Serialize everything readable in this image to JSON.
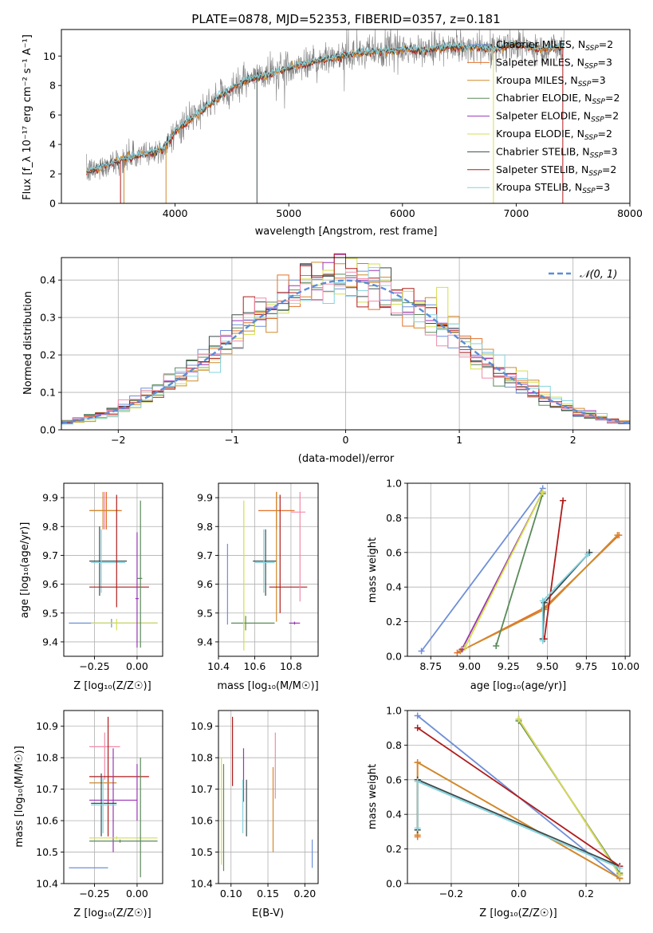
{
  "figure_title": "PLATE=0878, MJD=52353, FIBERID=0357, z=0.181",
  "colors": {
    "Chabrier MILES": "#6f8fd8",
    "Salpeter MILES": "#e3712a",
    "Kroupa MILES": "#d08a2b",
    "Chabrier ELODIE": "#5a8a5a",
    "Salpeter ELODIE": "#9a35b5",
    "Kroupa ELODIE": "#d4df4c",
    "Chabrier STELIB": "#3d4a4a",
    "Salpeter STELIB": "#b01c1c",
    "Kroupa STELIB": "#83d3df",
    "Salpeter MILES (err)": "#f08aa8",
    "normal": "#5b8dd6",
    "data": "#808080"
  },
  "chart_data": [
    {
      "id": "spectrum",
      "type": "line",
      "title": "PLATE=0878, MJD=52353, FIBERID=0357, z=0.181",
      "xlabel": "wavelength [Angstrom, rest frame]",
      "ylabel": "Flux [f_λ 10⁻¹⁷ erg cm⁻² s⁻¹ A⁻¹]",
      "xlim": [
        3000,
        8000
      ],
      "ylim": [
        0,
        11.8
      ],
      "xticks": [
        4000,
        5000,
        6000,
        7000,
        8000
      ],
      "yticks": [
        0,
        2,
        4,
        6,
        8,
        10
      ],
      "legend_position": "upper-right",
      "legend": [
        {
          "text": "Chabrier MILES, N",
          "sub": "SSP",
          "tail": "=2"
        },
        {
          "text": "Salpeter MILES, N",
          "sub": "SSP",
          "tail": "=3"
        },
        {
          "text": "Kroupa MILES, N",
          "sub": "SSP",
          "tail": "=3"
        },
        {
          "text": "Chabrier ELODIE, N",
          "sub": "SSP",
          "tail": "=2"
        },
        {
          "text": "Salpeter ELODIE, N",
          "sub": "SSP",
          "tail": "=2"
        },
        {
          "text": "Kroupa ELODIE, N",
          "sub": "SSP",
          "tail": "=2"
        },
        {
          "text": "Chabrier STELIB, N",
          "sub": "SSP",
          "tail": "=3"
        },
        {
          "text": "Salpeter STELIB, N",
          "sub": "SSP",
          "tail": "=2"
        },
        {
          "text": "Kroupa STELIB, N",
          "sub": "SSP",
          "tail": "=3"
        }
      ],
      "continuum": {
        "x": [
          3220,
          3500,
          3600,
          3700,
          3800,
          3900,
          4000,
          4100,
          4200,
          4300,
          4400,
          4500,
          4600,
          4800,
          5000,
          5200,
          5400,
          5600,
          5800,
          6000,
          6200,
          6400,
          6600,
          6800,
          7000,
          7200,
          7400
        ],
        "y": [
          2.1,
          2.9,
          3.1,
          3.3,
          3.5,
          3.7,
          4.9,
          5.5,
          6.1,
          6.7,
          7.3,
          7.8,
          8.3,
          8.7,
          9.2,
          9.6,
          9.9,
          10.2,
          10.3,
          10.4,
          10.4,
          10.6,
          10.6,
          10.5,
          10.8,
          10.5,
          10.6
        ]
      },
      "data_range": [
        3220,
        7420
      ]
    },
    {
      "id": "residuals",
      "type": "histogram",
      "xlabel": "(data-model)/error",
      "ylabel": "Normed distribution",
      "xlim": [
        -2.5,
        2.5
      ],
      "ylim": [
        0,
        0.46
      ],
      "xticks": [
        -2,
        -1,
        0,
        1,
        2
      ],
      "yticks": [
        0.0,
        0.1,
        0.2,
        0.3,
        0.4
      ],
      "legend_position": "upper-right",
      "legend": [
        {
          "text": "𝒩(0, 1)"
        }
      ],
      "bin_width": 0.1,
      "grid": true
    },
    {
      "id": "age_vs_Z",
      "type": "errorbar",
      "xlabel": "Z [log₁₀(Z/Z☉)]",
      "ylabel": "age  [log₁₀(age/yr)]",
      "xlim": [
        -0.43,
        0.15
      ],
      "ylim": [
        9.35,
        9.95
      ],
      "xticks": [
        -0.25,
        0.0
      ],
      "yticks": [
        9.4,
        9.5,
        9.6,
        9.7,
        9.8,
        9.9
      ],
      "points": [
        {
          "c": "Salpeter MILES",
          "x": -0.18,
          "y": 9.855,
          "xe": [
            -0.27,
            -0.09
          ],
          "ye": [
            9.79,
            9.92
          ]
        },
        {
          "c": "Salpeter MILES (err)",
          "x": -0.19,
          "y": 9.855,
          "xe": [
            -0.28,
            -0.1
          ],
          "ye": [
            9.79,
            9.92
          ]
        },
        {
          "c": "Kroupa MILES",
          "x": -0.2,
          "y": 9.855,
          "xe": [
            -0.28,
            -0.1
          ],
          "ye": [
            9.79,
            9.92
          ]
        },
        {
          "c": "Chabrier STELIB",
          "x": -0.22,
          "y": 9.68,
          "xe": [
            -0.28,
            -0.06
          ],
          "ye": [
            9.56,
            9.8
          ]
        },
        {
          "c": "Kroupa STELIB",
          "x": -0.21,
          "y": 9.675,
          "xe": [
            -0.27,
            -0.07
          ],
          "ye": [
            9.57,
            9.79
          ]
        },
        {
          "c": "Salpeter STELIB",
          "x": -0.12,
          "y": 9.59,
          "xe": [
            -0.28,
            0.07
          ],
          "ye": [
            9.52,
            9.91
          ]
        },
        {
          "c": "Chabrier MILES",
          "x": -0.15,
          "y": 9.465,
          "xe": [
            -0.4,
            0.12
          ],
          "ye": [
            9.45,
            9.48
          ]
        },
        {
          "c": "Kroupa ELODIE",
          "x": -0.12,
          "y": 9.465,
          "xe": [
            -0.27,
            0.12
          ],
          "ye": [
            9.44,
            9.48
          ]
        },
        {
          "c": "Chabrier ELODIE",
          "x": 0.02,
          "y": 9.62,
          "xe": [
            0.0,
            0.03
          ],
          "ye": [
            9.38,
            9.89
          ]
        },
        {
          "c": "Salpeter ELODIE",
          "x": 0.0,
          "y": 9.55,
          "xe": [
            -0.01,
            0.01
          ],
          "ye": [
            9.38,
            9.78
          ]
        }
      ]
    },
    {
      "id": "age_vs_mass",
      "type": "errorbar",
      "xlabel": "mass [log₁₀(M/M☉)]",
      "ylabel": "",
      "xlim": [
        10.4,
        10.95
      ],
      "ylim": [
        9.35,
        9.95
      ],
      "xticks": [
        10.4,
        10.6,
        10.8
      ],
      "yticks": [
        9.4,
        9.5,
        9.6,
        9.7,
        9.8,
        9.9
      ],
      "points": [
        {
          "c": "Chabrier MILES",
          "x": 10.45,
          "y": 9.6,
          "xe": [
            10.45,
            10.45
          ],
          "ye": [
            9.46,
            9.74
          ]
        },
        {
          "c": "Chabrier ELODIE",
          "x": 10.55,
          "y": 9.465,
          "xe": [
            10.47,
            10.71
          ],
          "ye": [
            9.44,
            9.49
          ]
        },
        {
          "c": "Kroupa ELODIE",
          "x": 10.54,
          "y": 9.6,
          "xe": [
            10.54,
            10.54
          ],
          "ye": [
            9.37,
            9.89
          ]
        },
        {
          "c": "Chabrier STELIB",
          "x": 10.66,
          "y": 9.68,
          "xe": [
            10.59,
            10.72
          ],
          "ye": [
            9.56,
            9.79
          ]
        },
        {
          "c": "Kroupa STELIB",
          "x": 10.65,
          "y": 9.675,
          "xe": [
            10.6,
            10.71
          ],
          "ye": [
            9.57,
            9.79
          ]
        },
        {
          "c": "Salpeter MILES",
          "x": 10.72,
          "y": 9.855,
          "xe": [
            10.62,
            10.82
          ],
          "ye": [
            9.79,
            9.92
          ]
        },
        {
          "c": "Kroupa MILES",
          "x": 10.72,
          "y": 9.69,
          "xe": [
            10.72,
            10.72
          ],
          "ye": [
            9.47,
            9.92
          ]
        },
        {
          "c": "Salpeter STELIB",
          "x": 10.74,
          "y": 9.59,
          "xe": [
            10.68,
            10.89
          ],
          "ye": [
            9.5,
            9.91
          ]
        },
        {
          "c": "Salpeter ELODIE",
          "x": 10.82,
          "y": 9.465,
          "xe": [
            10.79,
            10.85
          ],
          "ye": [
            9.46,
            9.47
          ]
        },
        {
          "c": "Salpeter MILES (err)",
          "x": 10.85,
          "y": 9.85,
          "xe": [
            10.8,
            10.88
          ],
          "ye": [
            9.54,
            9.92
          ]
        }
      ]
    },
    {
      "id": "weight_vs_age",
      "type": "line",
      "xlabel": "age  [log₁₀(age/yr)]",
      "ylabel": "mass weight",
      "xlim": [
        8.6,
        10.03
      ],
      "ylim": [
        0,
        1
      ],
      "xticks": [
        8.75,
        9.0,
        9.25,
        9.5,
        9.75,
        10.0
      ],
      "yticks": [
        0.0,
        0.2,
        0.4,
        0.6,
        0.8,
        1.0
      ],
      "series": [
        {
          "c": "Chabrier MILES",
          "x": [
            8.69,
            9.47
          ],
          "y": [
            0.03,
            0.97
          ]
        },
        {
          "c": "Salpeter MILES",
          "x": [
            8.92,
            9.48,
            9.96
          ],
          "y": [
            0.02,
            0.28,
            0.7
          ]
        },
        {
          "c": "Kroupa MILES",
          "x": [
            8.94,
            9.48,
            9.95
          ],
          "y": [
            0.03,
            0.27,
            0.7
          ]
        },
        {
          "c": "Chabrier ELODIE",
          "x": [
            9.17,
            9.47
          ],
          "y": [
            0.06,
            0.94
          ]
        },
        {
          "c": "Salpeter ELODIE",
          "x": [
            8.95,
            9.47
          ],
          "y": [
            0.04,
            0.95
          ]
        },
        {
          "c": "Kroupa ELODIE",
          "x": [
            8.97,
            9.47
          ],
          "y": [
            0.05,
            0.95
          ]
        },
        {
          "c": "Chabrier STELIB",
          "x": [
            9.47,
            9.48,
            9.77
          ],
          "y": [
            0.1,
            0.31,
            0.6
          ]
        },
        {
          "c": "Salpeter STELIB",
          "x": [
            9.48,
            9.6
          ],
          "y": [
            0.1,
            0.9
          ]
        },
        {
          "c": "Kroupa STELIB",
          "x": [
            9.47,
            9.47,
            9.76
          ],
          "y": [
            0.09,
            0.32,
            0.59
          ]
        }
      ]
    },
    {
      "id": "mass_vs_Z",
      "type": "errorbar",
      "xlabel": "Z [log₁₀(Z/Z☉)]",
      "ylabel": "mass [log₁₀(M/M☉)]",
      "xlim": [
        -0.43,
        0.15
      ],
      "ylim": [
        10.4,
        10.95
      ],
      "xticks": [
        -0.25,
        0.0
      ],
      "yticks": [
        10.4,
        10.5,
        10.6,
        10.7,
        10.8,
        10.9
      ],
      "points": [
        {
          "c": "Salpeter MILES (err)",
          "x": -0.19,
          "y": 10.835,
          "xe": [
            -0.28,
            -0.1
          ],
          "ye": [
            10.73,
            10.88
          ]
        },
        {
          "c": "Salpeter STELIB",
          "x": -0.17,
          "y": 10.74,
          "xe": [
            -0.28,
            0.07
          ],
          "ye": [
            10.55,
            10.93
          ]
        },
        {
          "c": "Kroupa MILES",
          "x": -0.2,
          "y": 10.72,
          "xe": [
            -0.28,
            -0.12
          ],
          "ye": [
            10.72,
            10.72
          ]
        },
        {
          "c": "Salpeter ELODIE",
          "x": -0.14,
          "y": 10.665,
          "xe": [
            -0.28,
            0.0
          ],
          "ye": [
            10.5,
            10.83
          ]
        },
        {
          "c": "Chabrier STELIB",
          "x": -0.21,
          "y": 10.655,
          "xe": [
            -0.27,
            -0.12
          ],
          "ye": [
            10.55,
            10.75
          ]
        },
        {
          "c": "Kroupa STELIB",
          "x": -0.2,
          "y": 10.65,
          "xe": [
            -0.27,
            -0.12
          ],
          "ye": [
            10.56,
            10.74
          ]
        },
        {
          "c": "Kroupa ELODIE",
          "x": -0.12,
          "y": 10.545,
          "xe": [
            -0.28,
            0.12
          ],
          "ye": [
            10.54,
            10.55
          ]
        },
        {
          "c": "Chabrier ELODIE",
          "x": -0.1,
          "y": 10.535,
          "xe": [
            -0.28,
            0.12
          ],
          "ye": [
            10.53,
            10.54
          ]
        },
        {
          "c": "Chabrier MILES",
          "x": -0.28,
          "y": 10.45,
          "xe": [
            -0.4,
            -0.17
          ],
          "ye": [
            10.45,
            10.45
          ]
        },
        {
          "c": "Salpeter ELODIE",
          "x": 0.0,
          "y": 10.7,
          "xe": [
            0.0,
            0.0
          ],
          "ye": [
            10.6,
            10.78
          ]
        },
        {
          "c": "Chabrier ELODIE",
          "x": 0.02,
          "y": 10.6,
          "xe": [
            0.02,
            0.02
          ],
          "ye": [
            10.42,
            10.8
          ]
        }
      ]
    },
    {
      "id": "mass_vs_ebv",
      "type": "errorbar",
      "xlabel": "E(B-V)",
      "ylabel": "",
      "xlim": [
        0.083,
        0.218
      ],
      "ylim": [
        10.4,
        10.95
      ],
      "xticks": [
        0.1,
        0.15,
        0.2
      ],
      "yticks": [
        10.4,
        10.5,
        10.6,
        10.7,
        10.8,
        10.9
      ],
      "points": [
        {
          "c": "Kroupa ELODIE",
          "x": 0.087,
          "y": 10.63,
          "xe": [
            0.087,
            0.087
          ],
          "ye": [
            10.46,
            10.8
          ]
        },
        {
          "c": "Chabrier ELODIE",
          "x": 0.09,
          "y": 10.61,
          "xe": [
            0.09,
            0.09
          ],
          "ye": [
            10.44,
            10.78
          ]
        },
        {
          "c": "Salpeter STELIB",
          "x": 0.102,
          "y": 10.82,
          "xe": [
            0.102,
            0.102
          ],
          "ye": [
            10.71,
            10.93
          ]
        },
        {
          "c": "Salpeter ELODIE",
          "x": 0.117,
          "y": 10.75,
          "xe": [
            0.117,
            0.117
          ],
          "ye": [
            10.66,
            10.83
          ]
        },
        {
          "c": "Kroupa STELIB",
          "x": 0.116,
          "y": 10.65,
          "xe": [
            0.116,
            0.116
          ],
          "ye": [
            10.56,
            10.73
          ]
        },
        {
          "c": "Chabrier STELIB",
          "x": 0.121,
          "y": 10.64,
          "xe": [
            0.121,
            0.121
          ],
          "ye": [
            10.55,
            10.73
          ]
        },
        {
          "c": "Kroupa MILES",
          "x": 0.157,
          "y": 10.66,
          "xe": [
            0.157,
            0.157
          ],
          "ye": [
            10.5,
            10.77
          ]
        },
        {
          "c": "Salpeter MILES (err)",
          "x": 0.16,
          "y": 10.78,
          "xe": [
            0.16,
            0.16
          ],
          "ye": [
            10.67,
            10.88
          ]
        },
        {
          "c": "Chabrier MILES",
          "x": 0.21,
          "y": 10.49,
          "xe": [
            0.21,
            0.21
          ],
          "ye": [
            10.45,
            10.54
          ]
        }
      ]
    },
    {
      "id": "weight_vs_Z",
      "type": "line",
      "xlabel": "Z [log₁₀(Z/Z☉)]",
      "ylabel": "mass weight",
      "xlim": [
        -0.33,
        0.33
      ],
      "ylim": [
        0,
        1
      ],
      "xticks": [
        -0.2,
        0.0,
        0.2
      ],
      "yticks": [
        0.0,
        0.2,
        0.4,
        0.6,
        0.8,
        1.0
      ],
      "series": [
        {
          "c": "Chabrier MILES",
          "x": [
            -0.3,
            0.3
          ],
          "y": [
            0.97,
            0.03
          ]
        },
        {
          "c": "Salpeter MILES",
          "x": [
            -0.3,
            -0.3,
            0.3
          ],
          "y": [
            0.27,
            0.7,
            0.03
          ]
        },
        {
          "c": "Kroupa MILES",
          "x": [
            -0.3,
            -0.3,
            0.3
          ],
          "y": [
            0.28,
            0.7,
            0.03
          ]
        },
        {
          "c": "Chabrier ELODIE",
          "x": [
            0.0,
            0.3
          ],
          "y": [
            0.94,
            0.06
          ]
        },
        {
          "c": "Salpeter ELODIE",
          "x": [
            0.0,
            0.3
          ],
          "y": [
            0.95,
            0.05
          ]
        },
        {
          "c": "Kroupa ELODIE",
          "x": [
            0.0,
            0.3
          ],
          "y": [
            0.95,
            0.05
          ]
        },
        {
          "c": "Chabrier STELIB",
          "x": [
            -0.3,
            -0.3,
            0.3
          ],
          "y": [
            0.31,
            0.6,
            0.1
          ]
        },
        {
          "c": "Salpeter STELIB",
          "x": [
            -0.3,
            0.3
          ],
          "y": [
            0.9,
            0.1
          ]
        },
        {
          "c": "Kroupa STELIB",
          "x": [
            -0.3,
            -0.3,
            0.3
          ],
          "y": [
            0.32,
            0.59,
            0.09
          ]
        }
      ]
    }
  ]
}
